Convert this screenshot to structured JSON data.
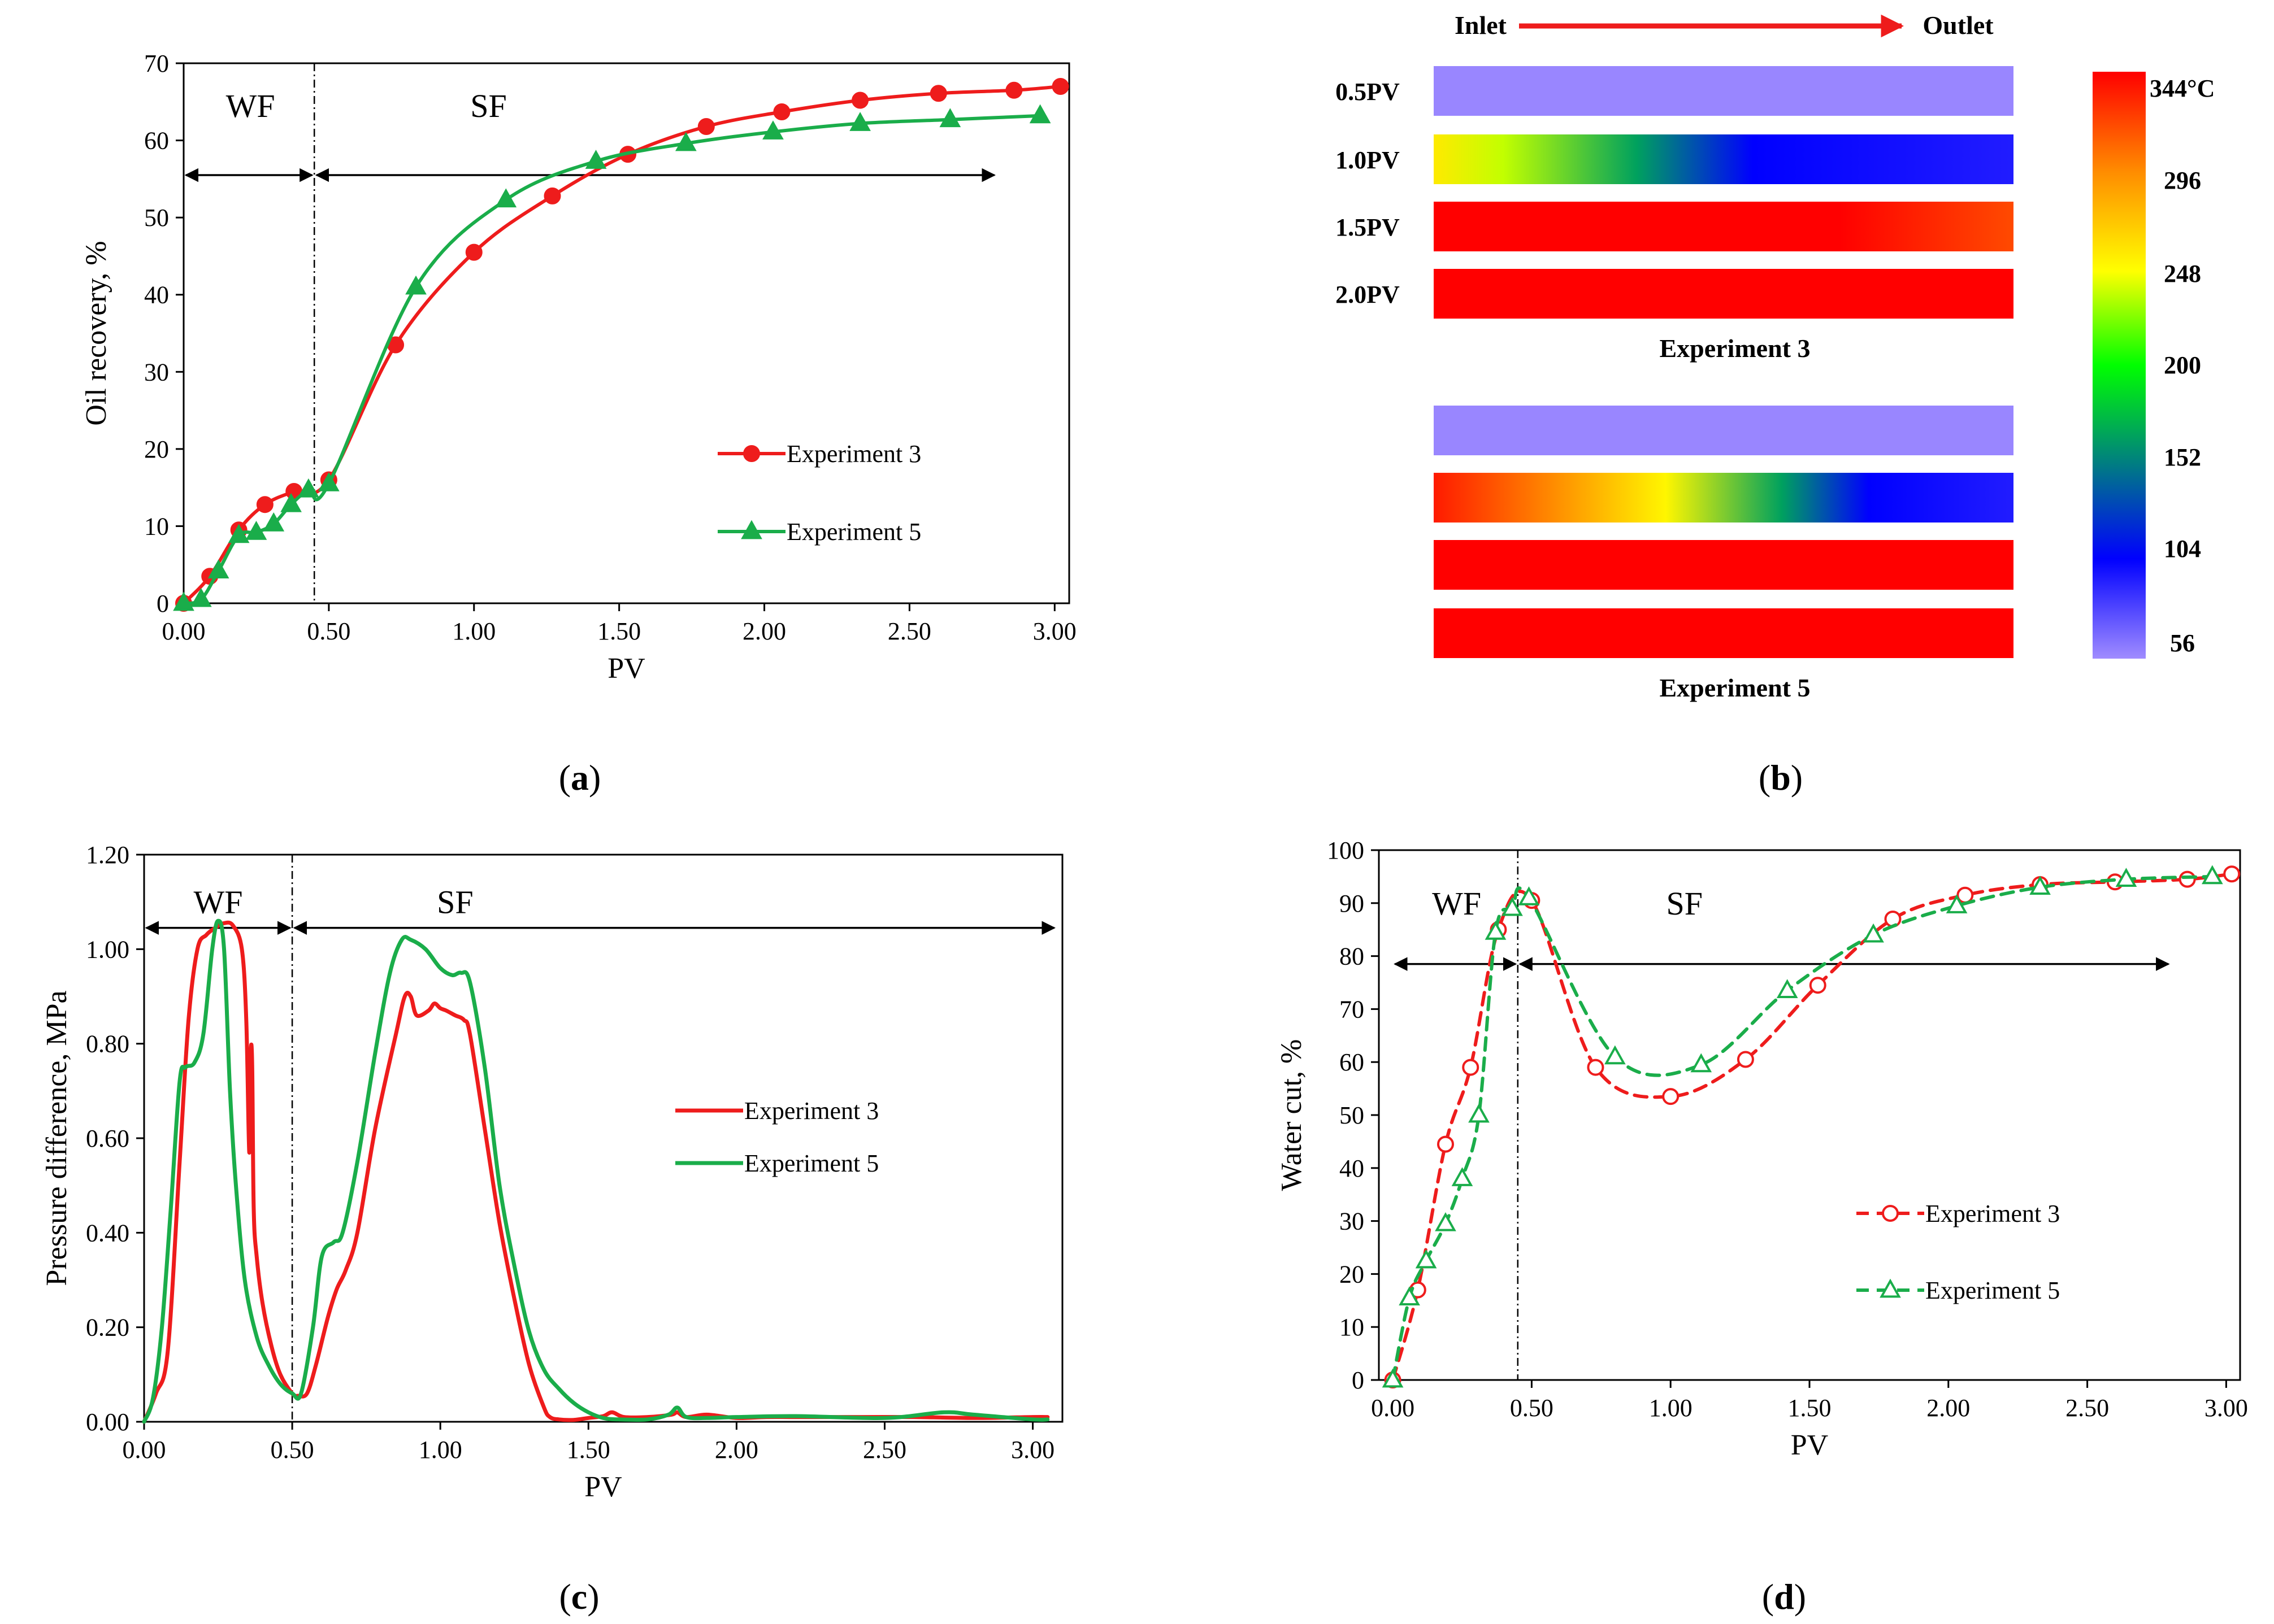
{
  "figure": {
    "colors": {
      "exp3": "#ee1c1c",
      "exp5": "#1aad4a",
      "axis": "#000000",
      "grid": "#000000"
    }
  },
  "chart_data": [
    {
      "id": "a",
      "caption": "(a)",
      "type": "line",
      "xlabel": "PV",
      "ylabel": "Oil recovery, %",
      "xlim": [
        0,
        3.05
      ],
      "ylim": [
        0,
        70
      ],
      "xticks": [
        0,
        0.5,
        1,
        1.5,
        2,
        2.5,
        3
      ],
      "xtick_labels": [
        "0.00",
        "0.50",
        "1.00",
        "1.50",
        "2.00",
        "2.50",
        "3.00"
      ],
      "yticks": [
        0,
        10,
        20,
        30,
        40,
        50,
        60,
        70
      ],
      "ytick_labels": [
        "0",
        "10",
        "20",
        "30",
        "40",
        "50",
        "60",
        "70"
      ],
      "divider_x": 0.45,
      "regions": [
        {
          "label": "WF",
          "x_from": 0,
          "x_to": 0.45,
          "arrow_y": 55.5,
          "label_x": 0.23,
          "label_y": 64.5
        },
        {
          "label": "SF",
          "x_from": 0.45,
          "x_to": 2.8,
          "arrow_y": 55.5,
          "label_x": 1.05,
          "label_y": 64.5
        }
      ],
      "legend": {
        "position": "lower-right"
      },
      "series": [
        {
          "name": "Experiment 3",
          "color": "#ee1c1c",
          "marker": "circle",
          "filled": true,
          "dashed": false,
          "x": [
            0,
            0.09,
            0.19,
            0.28,
            0.38,
            0.5,
            0.73,
            1.0,
            1.27,
            1.53,
            1.8,
            2.06,
            2.33,
            2.6,
            2.86,
            3.02
          ],
          "y": [
            0,
            3.5,
            9.5,
            12.8,
            14.5,
            16,
            33.5,
            45.5,
            52.8,
            58.2,
            61.8,
            63.7,
            65.2,
            66.1,
            66.5,
            67
          ]
        },
        {
          "name": "Experiment 5",
          "color": "#1aad4a",
          "marker": "triangle",
          "filled": true,
          "dashed": false,
          "x": [
            0,
            0.06,
            0.12,
            0.19,
            0.25,
            0.31,
            0.37,
            0.43,
            0.5,
            0.8,
            1.11,
            1.42,
            1.73,
            2.03,
            2.33,
            2.64,
            2.95
          ],
          "y": [
            0,
            0.5,
            4.2,
            8.8,
            9.2,
            10.3,
            12.8,
            14.7,
            15.5,
            41,
            52.3,
            57.3,
            59.6,
            61.1,
            62.2,
            62.7,
            63.2
          ]
        }
      ]
    },
    {
      "id": "b",
      "caption": "(b)",
      "type": "heatmap",
      "inlet_label": "Inlet",
      "outlet_label": "Outlet",
      "row_labels": [
        "0.5PV",
        "1.0PV",
        "1.5PV",
        "2.0PV"
      ],
      "experiments": [
        {
          "title": "Experiment  3",
          "rows": [
            [
              [
                0,
                58
              ],
              [
                1,
                58
              ]
            ],
            [
              [
                0,
                255
              ],
              [
                0.12,
                235
              ],
              [
                0.35,
                165
              ],
              [
                0.55,
                105
              ],
              [
                1,
                95
              ]
            ],
            [
              [
                0,
                344
              ],
              [
                0.7,
                344
              ],
              [
                1,
                318
              ]
            ],
            [
              [
                0,
                344
              ],
              [
                1,
                344
              ]
            ]
          ]
        },
        {
          "title": "Experiment  5",
          "rows": [
            [
              [
                0,
                58
              ],
              [
                1,
                58
              ]
            ],
            [
              [
                0,
                335
              ],
              [
                0.25,
                285
              ],
              [
                0.4,
                250
              ],
              [
                0.6,
                165
              ],
              [
                0.75,
                105
              ],
              [
                1,
                95
              ]
            ],
            [
              [
                0,
                344
              ],
              [
                1,
                344
              ]
            ],
            [
              [
                0,
                344
              ],
              [
                1,
                344
              ]
            ]
          ]
        }
      ],
      "colorbar": {
        "min": 56,
        "max": 344,
        "tick_values": [
          344,
          296,
          248,
          200,
          152,
          104,
          56
        ],
        "tick_labels": [
          "344°C",
          "296",
          "248",
          "200",
          "152",
          "104",
          "56"
        ]
      }
    },
    {
      "id": "c",
      "caption": "(c)",
      "type": "line",
      "xlabel": "PV",
      "ylabel": "Pressure difference, MPa",
      "xlim": [
        0,
        3.1
      ],
      "ylim": [
        0,
        1.2
      ],
      "xticks": [
        0,
        0.5,
        1,
        1.5,
        2,
        2.5,
        3
      ],
      "xtick_labels": [
        "0.00",
        "0.50",
        "1.00",
        "1.50",
        "2.00",
        "2.50",
        "3.00"
      ],
      "yticks": [
        0,
        0.2,
        0.4,
        0.6,
        0.8,
        1.0,
        1.2
      ],
      "ytick_labels": [
        "0.00",
        "0.20",
        "0.40",
        "0.60",
        "0.80",
        "1.00",
        "1.20"
      ],
      "divider_x": 0.5,
      "regions": [
        {
          "label": "WF",
          "x_from": 0,
          "x_to": 0.5,
          "arrow_y": 1.045,
          "label_x": 0.25,
          "label_y": 1.1
        },
        {
          "label": "SF",
          "x_from": 0.5,
          "x_to": 3.08,
          "arrow_y": 1.045,
          "label_x": 1.05,
          "label_y": 1.1
        }
      ],
      "legend": {
        "position": "center-right"
      },
      "series": [
        {
          "name": "Experiment 3",
          "color": "#ee1c1c",
          "marker": "none",
          "dashed": false,
          "x": [
            0,
            0.04,
            0.08,
            0.12,
            0.15,
            0.18,
            0.21,
            0.24,
            0.27,
            0.3,
            0.33,
            0.345,
            0.355,
            0.36,
            0.365,
            0.37,
            0.38,
            0.4,
            0.43,
            0.46,
            0.5,
            0.52,
            0.55,
            0.58,
            0.62,
            0.65,
            0.68,
            0.72,
            0.78,
            0.85,
            0.88,
            0.9,
            0.92,
            0.96,
            0.98,
            1.0,
            1.02,
            1.05,
            1.08,
            1.1,
            1.15,
            1.2,
            1.25,
            1.3,
            1.35,
            1.37,
            1.4,
            1.45,
            1.5,
            1.55,
            1.58,
            1.62,
            1.7,
            1.78,
            1.8,
            1.83,
            1.9,
            2.0,
            2.1,
            2.2,
            2.4,
            2.6,
            2.8,
            3.0,
            3.05
          ],
          "y": [
            0,
            0.06,
            0.15,
            0.55,
            0.85,
            1.0,
            1.03,
            1.045,
            1.055,
            1.05,
            1.0,
            0.85,
            0.57,
            0.78,
            0.75,
            0.45,
            0.35,
            0.25,
            0.16,
            0.1,
            0.06,
            0.055,
            0.06,
            0.12,
            0.22,
            0.28,
            0.32,
            0.4,
            0.62,
            0.82,
            0.9,
            0.9,
            0.86,
            0.87,
            0.885,
            0.875,
            0.87,
            0.86,
            0.85,
            0.82,
            0.62,
            0.42,
            0.26,
            0.12,
            0.03,
            0.01,
            0.005,
            0.004,
            0.008,
            0.012,
            0.02,
            0.01,
            0.01,
            0.015,
            0.02,
            0.01,
            0.015,
            0.008,
            0.01,
            0.01,
            0.01,
            0.01,
            0.008,
            0.01,
            0.01
          ]
        },
        {
          "name": "Experiment 5",
          "color": "#1aad4a",
          "marker": "none",
          "dashed": false,
          "x": [
            0,
            0.03,
            0.06,
            0.09,
            0.12,
            0.14,
            0.17,
            0.2,
            0.23,
            0.25,
            0.27,
            0.29,
            0.31,
            0.34,
            0.38,
            0.42,
            0.46,
            0.5,
            0.53,
            0.57,
            0.6,
            0.64,
            0.67,
            0.72,
            0.78,
            0.83,
            0.87,
            0.9,
            0.95,
            1.0,
            1.04,
            1.07,
            1.1,
            1.15,
            1.2,
            1.25,
            1.3,
            1.35,
            1.4,
            1.45,
            1.5,
            1.55,
            1.6,
            1.7,
            1.77,
            1.8,
            1.83,
            1.9,
            2.0,
            2.2,
            2.5,
            2.7,
            2.8,
            3.0,
            3.05
          ],
          "y": [
            0,
            0.05,
            0.2,
            0.45,
            0.72,
            0.75,
            0.76,
            0.82,
            1.0,
            1.06,
            1.0,
            0.7,
            0.5,
            0.3,
            0.18,
            0.12,
            0.08,
            0.06,
            0.06,
            0.2,
            0.35,
            0.38,
            0.4,
            0.55,
            0.78,
            0.95,
            1.02,
            1.02,
            1.0,
            0.96,
            0.945,
            0.95,
            0.93,
            0.75,
            0.5,
            0.33,
            0.19,
            0.11,
            0.07,
            0.04,
            0.02,
            0.008,
            0.005,
            0.005,
            0.015,
            0.03,
            0.01,
            0.008,
            0.01,
            0.012,
            0.008,
            0.02,
            0.015,
            0.005,
            0.005
          ]
        }
      ]
    },
    {
      "id": "d",
      "caption": "(d)",
      "type": "line",
      "xlabel": "PV",
      "ylabel": "Water cut, %",
      "xlim": [
        -0.05,
        3.05
      ],
      "ylim": [
        0,
        100
      ],
      "xticks": [
        0,
        0.5,
        1,
        1.5,
        2,
        2.5,
        3
      ],
      "xtick_labels": [
        "0.00",
        "0.50",
        "1.00",
        "1.50",
        "2.00",
        "2.50",
        "3.00"
      ],
      "yticks": [
        0,
        10,
        20,
        30,
        40,
        50,
        60,
        70,
        80,
        90,
        100
      ],
      "ytick_labels": [
        "0",
        "10",
        "20",
        "30",
        "40",
        "50",
        "60",
        "70",
        "80",
        "90",
        "100"
      ],
      "divider_x": 0.45,
      "regions": [
        {
          "label": "WF",
          "x_from": 0,
          "x_to": 0.45,
          "arrow_y": 78.5,
          "label_x": 0.23,
          "label_y": 90
        },
        {
          "label": "SF",
          "x_from": 0.45,
          "x_to": 2.8,
          "arrow_y": 78.5,
          "label_x": 1.05,
          "label_y": 90
        }
      ],
      "legend": {
        "position": "lower-right"
      },
      "series": [
        {
          "name": "Experiment 3",
          "color": "#ee1c1c",
          "marker": "circle",
          "filled": false,
          "dashed": true,
          "x": [
            0,
            0.09,
            0.19,
            0.28,
            0.38,
            0.5,
            0.73,
            1.0,
            1.27,
            1.53,
            1.8,
            2.06,
            2.33,
            2.6,
            2.86,
            3.02
          ],
          "y": [
            0,
            17,
            44.5,
            59,
            85,
            90.5,
            59,
            53.5,
            60.5,
            74.5,
            87,
            91.5,
            93.5,
            94,
            94.5,
            95.5
          ]
        },
        {
          "name": "Experiment 5",
          "color": "#1aad4a",
          "marker": "triangle",
          "filled": false,
          "dashed": true,
          "x": [
            0,
            0.06,
            0.12,
            0.19,
            0.25,
            0.31,
            0.37,
            0.43,
            0.49,
            0.8,
            1.11,
            1.42,
            1.73,
            2.03,
            2.33,
            2.64,
            2.95
          ],
          "y": [
            0,
            15.5,
            22.5,
            29.5,
            38,
            50,
            84.5,
            89,
            91,
            61,
            59.5,
            73.5,
            84,
            89.5,
            93,
            94.5,
            95
          ]
        }
      ]
    }
  ]
}
